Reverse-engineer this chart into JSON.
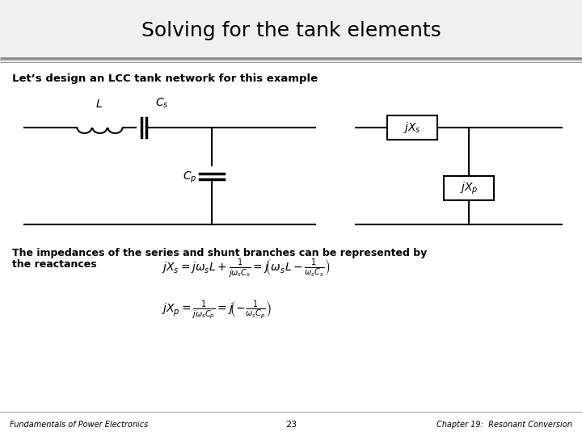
{
  "title": "Solving for the tank elements",
  "subtitle": "Let’s design an LCC tank network for this example",
  "footer_left": "Fundamentals of Power Electronics",
  "footer_center": "23",
  "footer_right": "Chapter 19:  Resonant Conversion",
  "bg_color": "#ffffff",
  "title_bg_color": "#ffffff",
  "title_stripe1": "#aaaaaa",
  "title_stripe2": "#cccccc",
  "content_bg": "#ffffff",
  "title_color": "#000000",
  "text_color": "#000000",
  "title_fontsize": 18,
  "subtitle_fontsize": 9.5,
  "body_fontsize": 9,
  "eq_fontsize": 9,
  "footer_fontsize": 7
}
